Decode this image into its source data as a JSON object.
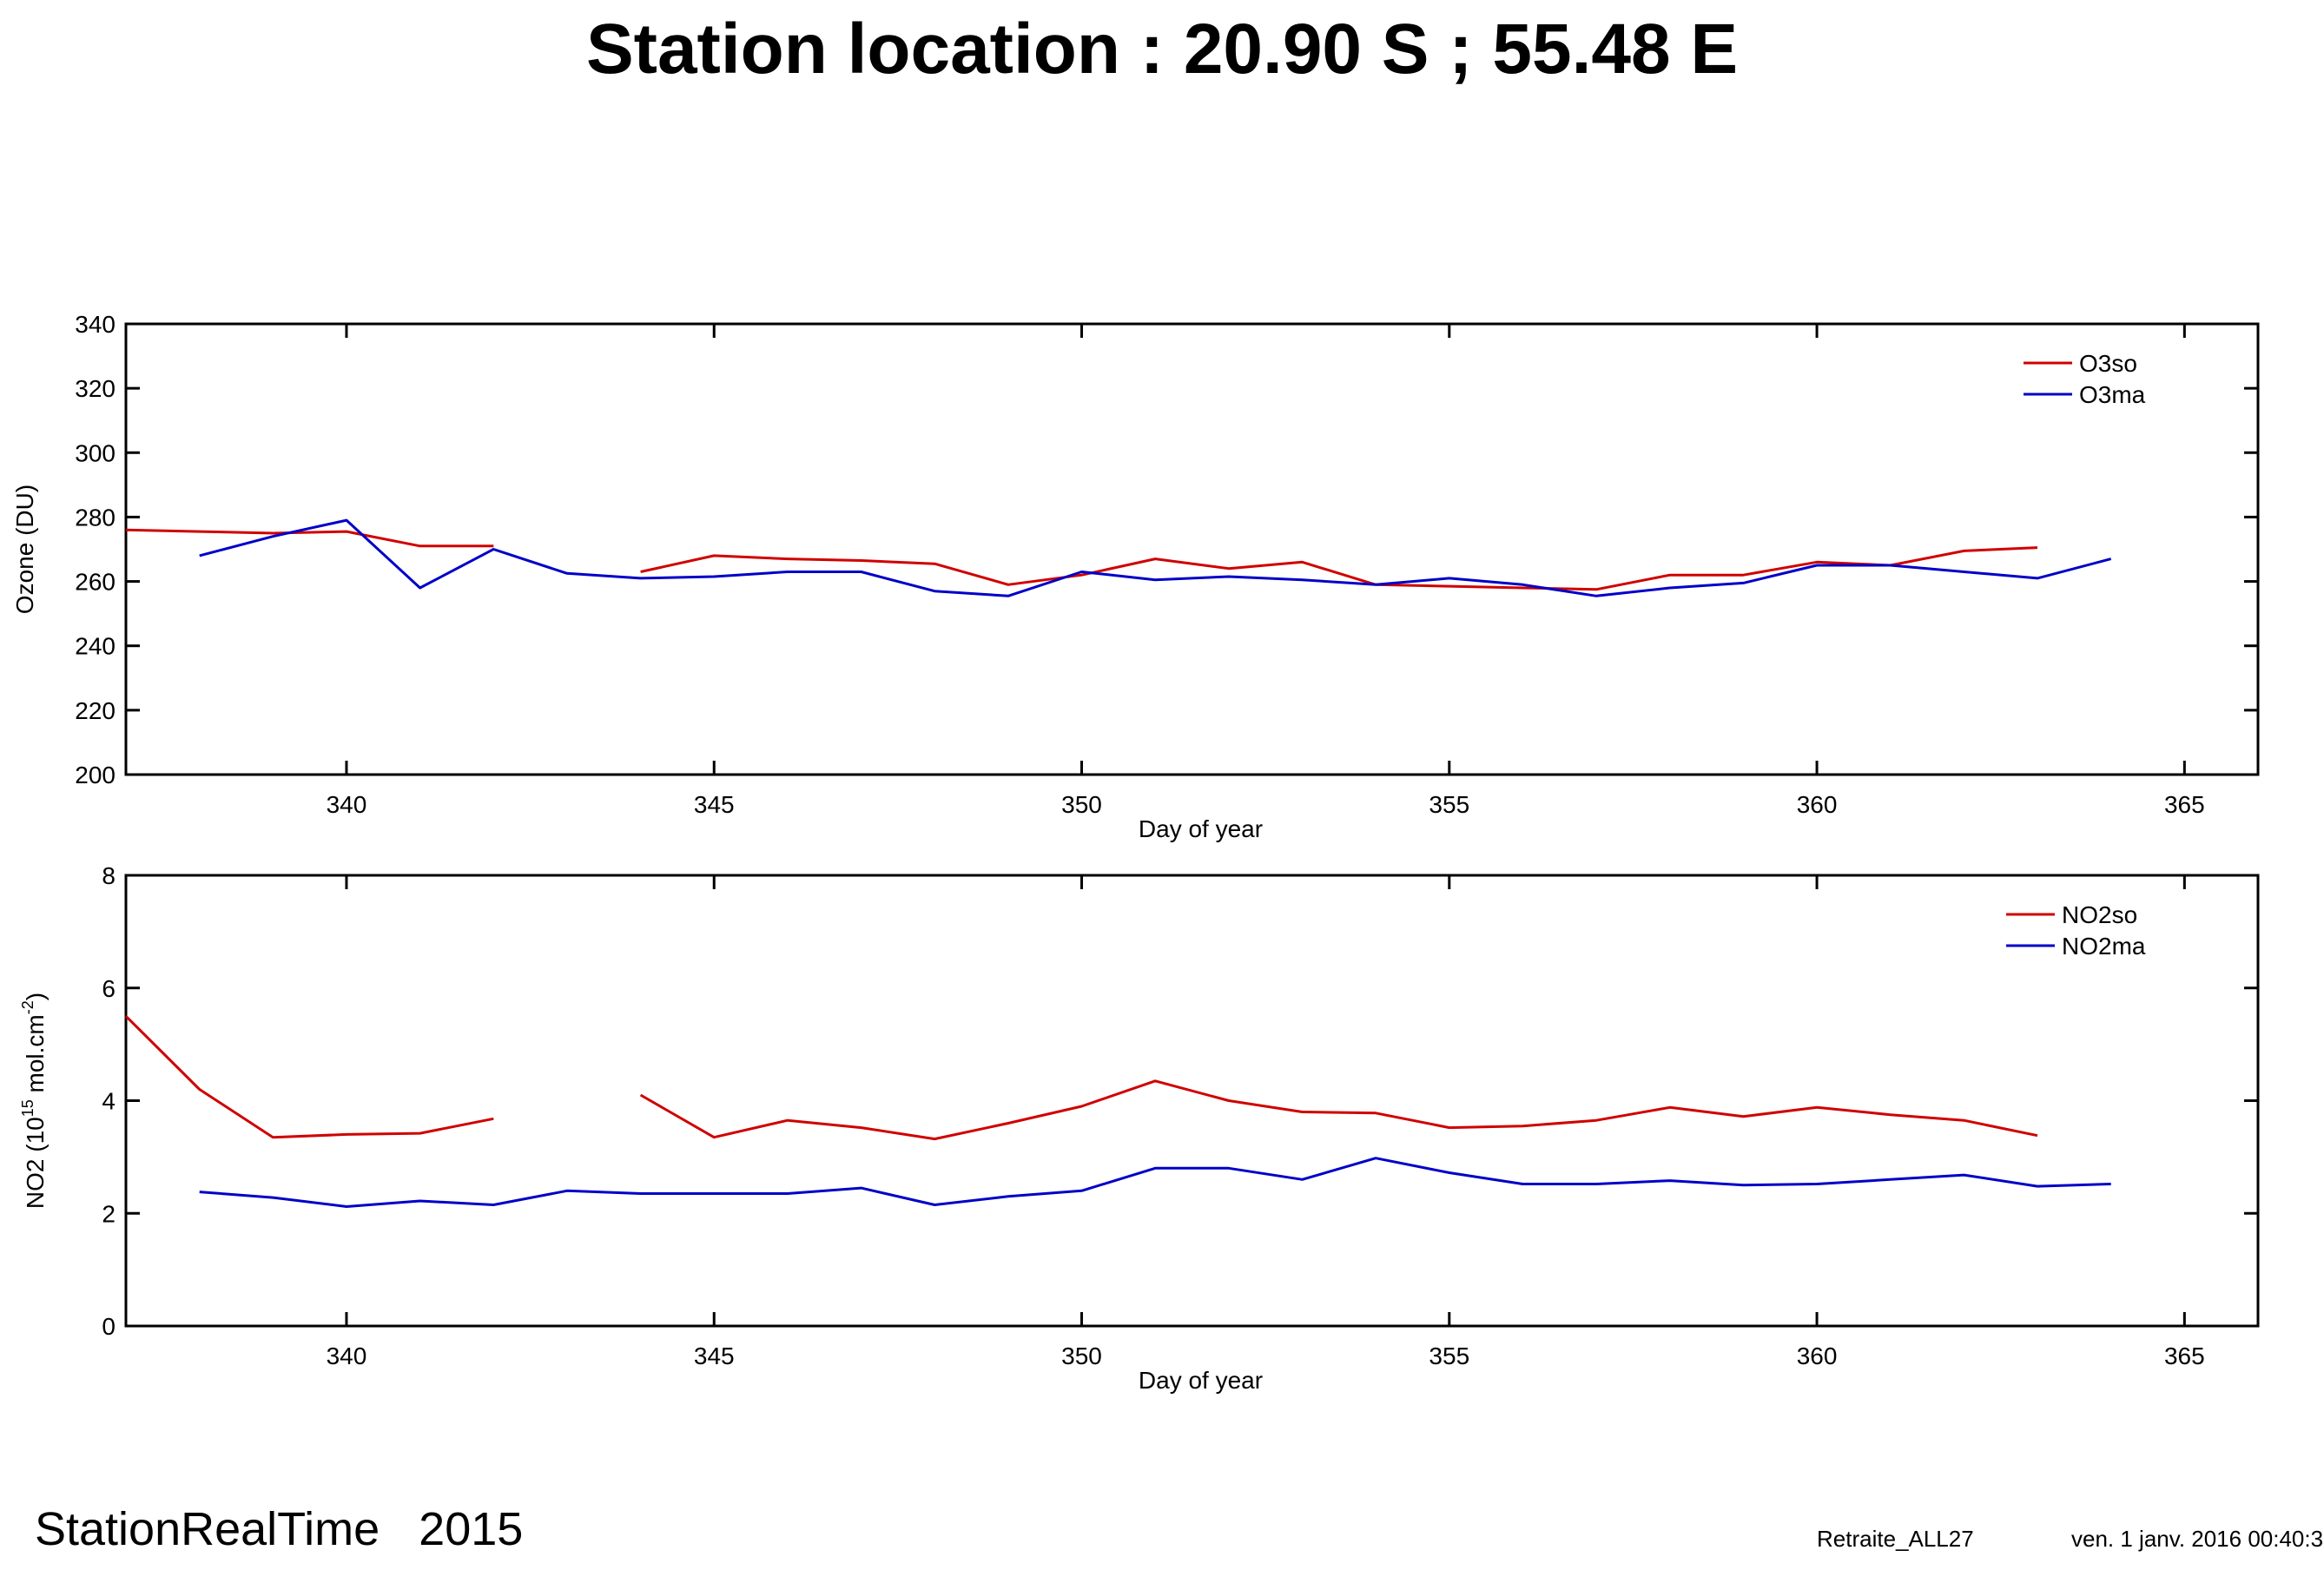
{
  "page": {
    "title": "Station location : 20.90 S ; 55.48 E",
    "footer_left": "StationRealTime   2015",
    "footer_processing": "Retraite_ALL27",
    "footer_date": "ven. 1 janv. 2016 00:40:39"
  },
  "colors": {
    "red": "#d00000",
    "blue": "#0000c8"
  },
  "chart_data": [
    {
      "type": "line",
      "xlabel": "Day of year",
      "ylabel": "Ozone (DU)",
      "xlim": [
        337,
        366
      ],
      "ylim": [
        200,
        340
      ],
      "xticks": [
        340,
        345,
        350,
        355,
        360,
        365
      ],
      "yticks": [
        200,
        220,
        240,
        260,
        280,
        300,
        320,
        340
      ],
      "legend_position": "top-right",
      "series": [
        {
          "name": "O3so",
          "color": "#d00000",
          "segments": [
            [
              [
                337,
                276
              ],
              [
                338,
                275.5
              ],
              [
                339,
                275
              ],
              [
                340,
                275.5
              ],
              [
                341,
                271
              ],
              [
                342,
                271
              ]
            ],
            [
              [
                344,
                263
              ],
              [
                345,
                268
              ],
              [
                346,
                267
              ],
              [
                347,
                266.5
              ],
              [
                348,
                265.5
              ],
              [
                349,
                259
              ],
              [
                350,
                262
              ],
              [
                351,
                267
              ],
              [
                352,
                264
              ],
              [
                353,
                266
              ],
              [
                354,
                259
              ],
              [
                355,
                258.5
              ],
              [
                356,
                258
              ],
              [
                357,
                257.5
              ],
              [
                358,
                262
              ],
              [
                359,
                262
              ],
              [
                360,
                266
              ],
              [
                361,
                265
              ],
              [
                362,
                269.5
              ],
              [
                363,
                270.5
              ]
            ]
          ]
        },
        {
          "name": "O3ma",
          "color": "#0000c8",
          "segments": [
            [
              [
                338,
                268
              ],
              [
                339,
                274
              ],
              [
                340,
                279
              ],
              [
                341,
                258
              ],
              [
                342,
                270
              ],
              [
                343,
                262.5
              ],
              [
                344,
                261
              ],
              [
                345,
                261.5
              ],
              [
                346,
                263
              ],
              [
                347,
                263
              ],
              [
                348,
                257
              ],
              [
                349,
                255.5
              ],
              [
                350,
                263
              ],
              [
                351,
                260.5
              ],
              [
                352,
                261.5
              ],
              [
                353,
                260.5
              ],
              [
                354,
                259
              ],
              [
                355,
                261
              ],
              [
                356,
                259
              ],
              [
                357,
                255.5
              ],
              [
                358,
                258
              ],
              [
                359,
                259.5
              ],
              [
                360,
                265
              ],
              [
                361,
                265
              ],
              [
                362,
                263
              ],
              [
                363,
                261
              ],
              [
                364,
                267
              ]
            ]
          ]
        }
      ]
    },
    {
      "type": "line",
      "xlabel": "Day of year",
      "ylabel_parts": [
        "NO2 (10",
        "15",
        " mol.cm",
        "-2",
        ")"
      ],
      "xlim": [
        337,
        366
      ],
      "ylim": [
        0,
        8
      ],
      "xticks": [
        340,
        345,
        350,
        355,
        360,
        365
      ],
      "yticks": [
        0,
        2,
        4,
        6,
        8
      ],
      "legend_position": "top-right",
      "series": [
        {
          "name": "NO2so",
          "color": "#d00000",
          "segments": [
            [
              [
                337,
                5.5
              ],
              [
                338,
                4.2
              ],
              [
                339,
                3.35
              ],
              [
                340,
                3.4
              ],
              [
                341,
                3.42
              ],
              [
                342,
                3.68
              ]
            ],
            [
              [
                344,
                4.1
              ],
              [
                345,
                3.35
              ],
              [
                346,
                3.65
              ],
              [
                347,
                3.52
              ],
              [
                348,
                3.32
              ],
              [
                349,
                3.6
              ],
              [
                350,
                3.9
              ],
              [
                351,
                4.35
              ],
              [
                352,
                4.0
              ],
              [
                353,
                3.8
              ],
              [
                354,
                3.78
              ],
              [
                355,
                3.52
              ],
              [
                356,
                3.55
              ],
              [
                357,
                3.65
              ],
              [
                358,
                3.88
              ],
              [
                359,
                3.72
              ],
              [
                360,
                3.88
              ],
              [
                361,
                3.75
              ],
              [
                362,
                3.65
              ],
              [
                363,
                3.38
              ]
            ]
          ]
        },
        {
          "name": "NO2ma",
          "color": "#0000c8",
          "segments": [
            [
              [
                338,
                2.38
              ],
              [
                339,
                2.28
              ],
              [
                340,
                2.12
              ],
              [
                341,
                2.22
              ],
              [
                342,
                2.15
              ],
              [
                343,
                2.4
              ],
              [
                344,
                2.35
              ],
              [
                345,
                2.35
              ],
              [
                346,
                2.35
              ],
              [
                347,
                2.45
              ],
              [
                348,
                2.15
              ],
              [
                349,
                2.3
              ],
              [
                350,
                2.4
              ],
              [
                351,
                2.8
              ],
              [
                352,
                2.8
              ],
              [
                353,
                2.6
              ],
              [
                354,
                2.98
              ],
              [
                355,
                2.72
              ],
              [
                356,
                2.52
              ],
              [
                357,
                2.52
              ],
              [
                358,
                2.58
              ],
              [
                359,
                2.5
              ],
              [
                360,
                2.52
              ],
              [
                361,
                2.6
              ],
              [
                362,
                2.68
              ],
              [
                363,
                2.48
              ],
              [
                364,
                2.52
              ]
            ]
          ]
        }
      ]
    }
  ]
}
